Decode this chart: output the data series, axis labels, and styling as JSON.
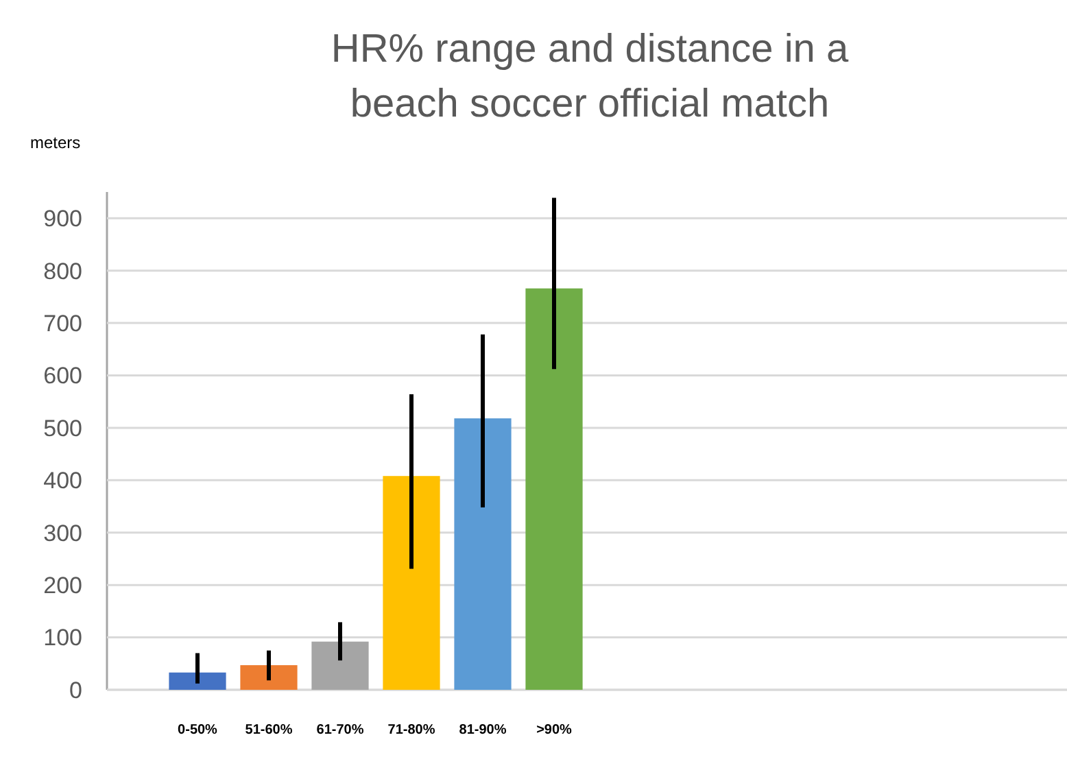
{
  "chart_data": {
    "type": "bar",
    "title": "HR% range and distance in a beach soccer official match",
    "ylabel": "meters",
    "categories": [
      "0-50%",
      "51-60%",
      "61-70%",
      "71-80%",
      "81-90%",
      ">90%"
    ],
    "values": [
      33,
      47,
      92,
      408,
      518,
      766
    ],
    "errors": [
      [
        12,
        70
      ],
      [
        18,
        75
      ],
      [
        56,
        129
      ],
      [
        231,
        564
      ],
      [
        348,
        678
      ],
      [
        612,
        939
      ]
    ],
    "colors": [
      "#4472c4",
      "#ed7d31",
      "#a5a5a5",
      "#ffc000",
      "#5b9bd5",
      "#70ad47"
    ],
    "ylim": [
      0,
      950
    ],
    "yticks": [
      0,
      100,
      200,
      300,
      400,
      500,
      600,
      700,
      800,
      900
    ],
    "grid": "y"
  }
}
